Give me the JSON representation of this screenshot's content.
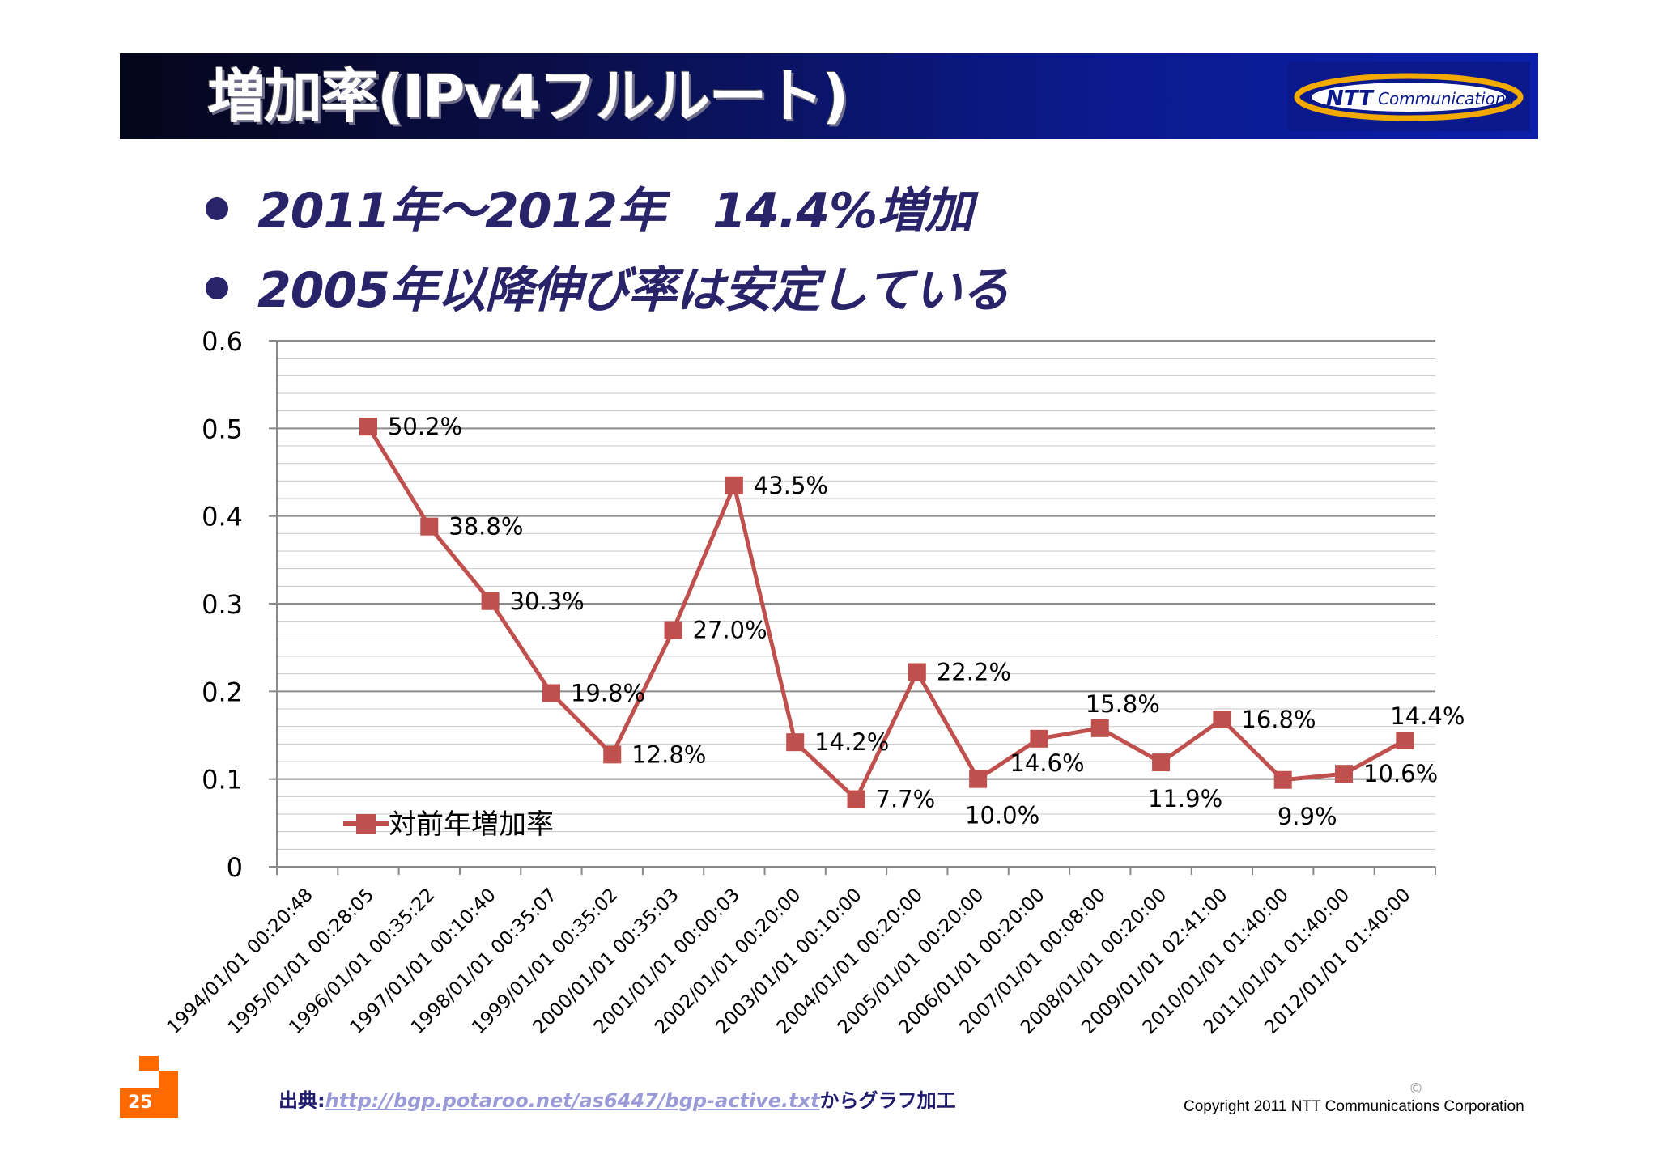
{
  "header": {
    "title": "増加率(IPv4フルルート)",
    "logo_text_bold": "NTT",
    "logo_text": "Communications"
  },
  "bullets": [
    "2011年～2012年　14.4%増加",
    "2005年以降伸び率は安定している"
  ],
  "chart_data": {
    "type": "line",
    "categories": [
      "1994/01/01 00:20:48",
      "1995/01/01 00:28:05",
      "1996/01/01 00:35:22",
      "1997/01/01 00:10:40",
      "1998/01/01 00:35:07",
      "1999/01/01 00:35:02",
      "2000/01/01 00:35:03",
      "2001/01/01 00:00:03",
      "2002/01/01 00:20:00",
      "2003/01/01 00:10:00",
      "2004/01/01 00:20:00",
      "2005/01/01 00:20:00",
      "2006/01/01 00:20:00",
      "2007/01/01 00:08:00",
      "2008/01/01 00:20:00",
      "2009/01/01 02:41:00",
      "2010/01/01 01:40:00",
      "2011/01/01 01:40:00",
      "2012/01/01 01:40:00"
    ],
    "series": [
      {
        "name": "対前年増加率",
        "values": [
          null,
          0.502,
          0.388,
          0.303,
          0.198,
          0.128,
          0.27,
          0.435,
          0.142,
          0.077,
          0.222,
          0.1,
          0.146,
          0.158,
          0.119,
          0.168,
          0.099,
          0.106,
          0.144
        ],
        "labels": [
          null,
          "50.2%",
          "38.8%",
          "30.3%",
          "19.8%",
          "12.8%",
          "27.0%",
          "43.5%",
          "14.2%",
          "7.7%",
          "22.2%",
          "10.0%",
          "14.6%",
          "15.8%",
          "11.9%",
          "16.8%",
          "9.9%",
          "10.6%",
          "14.4%"
        ],
        "color": "#c0504d"
      }
    ],
    "y_ticks": [
      "0",
      "0.1",
      "0.2",
      "0.3",
      "0.4",
      "0.5",
      "0.6"
    ],
    "ylim": [
      0,
      0.6
    ],
    "grid": true,
    "legend": "bottom-left inside"
  },
  "footer": {
    "slide_number": "25",
    "source_prefix": "出典:",
    "source_url": "http://bgp.potaroo.net/as6447/bgp-active.txt",
    "source_suffix": "からグラフ加工",
    "copyright_mark": "©",
    "copyright": "Copyright 2011 NTT Communications Corporation"
  },
  "colors": {
    "header_dark": "#05051a",
    "header_blue": "#0b1faa",
    "bullet_text": "#29246a",
    "series": "#c0504d",
    "orange_block": "#ff6a00"
  }
}
